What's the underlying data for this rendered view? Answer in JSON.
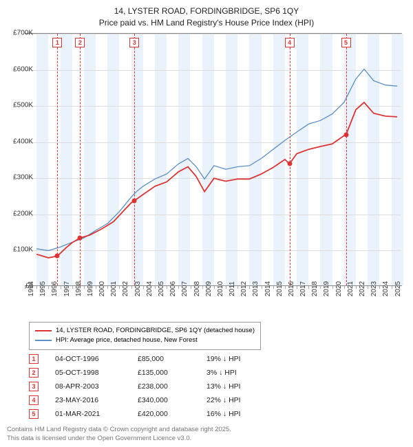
{
  "title": {
    "line1": "14, LYSTER ROAD, FORDINGBRIDGE, SP6 1QY",
    "line2": "Price paid vs. HM Land Registry's House Price Index (HPI)"
  },
  "chart": {
    "type": "line",
    "background_color": "#ffffff",
    "grid_color": "#dddddd",
    "shade_color": "#eaf2fb",
    "y_axis": {
      "min": 0,
      "max": 700000,
      "step": 100000,
      "tick_labels": [
        "£0",
        "£100K",
        "£200K",
        "£300K",
        "£400K",
        "£500K",
        "£600K",
        "£700K"
      ],
      "label_fontsize": 10
    },
    "x_axis": {
      "min": 1994,
      "max": 2025.9,
      "ticks": [
        1994,
        1995,
        1996,
        1997,
        1998,
        1999,
        2000,
        2001,
        2002,
        2003,
        2004,
        2005,
        2006,
        2007,
        2008,
        2009,
        2010,
        2011,
        2012,
        2013,
        2014,
        2015,
        2016,
        2017,
        2018,
        2019,
        2020,
        2021,
        2022,
        2023,
        2024,
        2025
      ],
      "label_fontsize": 10
    },
    "series": {
      "red": {
        "color": "#d33333",
        "width": 1.8,
        "points": [
          [
            1995.0,
            90000
          ],
          [
            1996.0,
            80000
          ],
          [
            1996.76,
            85000
          ],
          [
            1997.5,
            108000
          ],
          [
            1998.0,
            122000
          ],
          [
            1998.68,
            135000
          ],
          [
            1999.5,
            143000
          ],
          [
            2000.5,
            160000
          ],
          [
            2001.5,
            180000
          ],
          [
            2002.5,
            215000
          ],
          [
            2003.0,
            232000
          ],
          [
            2003.27,
            238000
          ],
          [
            2004.0,
            255000
          ],
          [
            2005.0,
            278000
          ],
          [
            2006.0,
            290000
          ],
          [
            2007.0,
            318000
          ],
          [
            2007.8,
            332000
          ],
          [
            2008.5,
            305000
          ],
          [
            2009.2,
            263000
          ],
          [
            2010.0,
            300000
          ],
          [
            2011.0,
            292000
          ],
          [
            2012.0,
            298000
          ],
          [
            2013.0,
            298000
          ],
          [
            2014.0,
            312000
          ],
          [
            2015.0,
            330000
          ],
          [
            2016.0,
            352000
          ],
          [
            2016.39,
            340000
          ],
          [
            2017.0,
            368000
          ],
          [
            2018.0,
            380000
          ],
          [
            2019.0,
            388000
          ],
          [
            2020.0,
            395000
          ],
          [
            2021.0,
            418000
          ],
          [
            2021.16,
            420000
          ],
          [
            2022.0,
            490000
          ],
          [
            2022.7,
            510000
          ],
          [
            2023.5,
            480000
          ],
          [
            2024.5,
            472000
          ],
          [
            2025.5,
            470000
          ]
        ]
      },
      "blue": {
        "color": "#5a8fc7",
        "width": 1.3,
        "points": [
          [
            1995.0,
            105000
          ],
          [
            1996.0,
            100000
          ],
          [
            1997.0,
            110000
          ],
          [
            1998.0,
            123000
          ],
          [
            1999.0,
            135000
          ],
          [
            2000.0,
            156000
          ],
          [
            2001.0,
            175000
          ],
          [
            2002.0,
            208000
          ],
          [
            2003.0,
            248000
          ],
          [
            2003.5,
            265000
          ],
          [
            2004.0,
            278000
          ],
          [
            2005.0,
            298000
          ],
          [
            2006.0,
            312000
          ],
          [
            2007.0,
            340000
          ],
          [
            2007.8,
            355000
          ],
          [
            2008.5,
            332000
          ],
          [
            2009.2,
            298000
          ],
          [
            2010.0,
            335000
          ],
          [
            2011.0,
            325000
          ],
          [
            2012.0,
            332000
          ],
          [
            2013.0,
            335000
          ],
          [
            2014.0,
            355000
          ],
          [
            2015.0,
            380000
          ],
          [
            2016.0,
            405000
          ],
          [
            2017.0,
            428000
          ],
          [
            2018.0,
            450000
          ],
          [
            2019.0,
            460000
          ],
          [
            2020.0,
            478000
          ],
          [
            2021.0,
            510000
          ],
          [
            2022.0,
            575000
          ],
          [
            2022.7,
            602000
          ],
          [
            2023.5,
            570000
          ],
          [
            2024.5,
            558000
          ],
          [
            2025.5,
            555000
          ]
        ]
      }
    },
    "sale_markers": [
      {
        "n": "1",
        "year": 1996.76,
        "price": 85000
      },
      {
        "n": "2",
        "year": 1998.68,
        "price": 135000
      },
      {
        "n": "3",
        "year": 2003.27,
        "price": 238000
      },
      {
        "n": "4",
        "year": 2016.39,
        "price": 340000
      },
      {
        "n": "5",
        "year": 2021.16,
        "price": 420000
      }
    ],
    "marker_color": "#d33333"
  },
  "legend": {
    "red": "14, LYSTER ROAD, FORDINGBRIDGE, SP6 1QY (detached house)",
    "blue": "HPI: Average price, detached house, New Forest"
  },
  "sales": [
    {
      "n": "1",
      "date": "04-OCT-1996",
      "price": "£85,000",
      "diff": "19% ↓ HPI"
    },
    {
      "n": "2",
      "date": "05-OCT-1998",
      "price": "£135,000",
      "diff": "3% ↓ HPI"
    },
    {
      "n": "3",
      "date": "08-APR-2003",
      "price": "£238,000",
      "diff": "13% ↓ HPI"
    },
    {
      "n": "4",
      "date": "23-MAY-2016",
      "price": "£340,000",
      "diff": "22% ↓ HPI"
    },
    {
      "n": "5",
      "date": "01-MAR-2021",
      "price": "£420,000",
      "diff": "16% ↓ HPI"
    }
  ],
  "attribution": {
    "line1": "Contains HM Land Registry data © Crown copyright and database right 2025.",
    "line2": "This data is licensed under the Open Government Licence v3.0."
  }
}
